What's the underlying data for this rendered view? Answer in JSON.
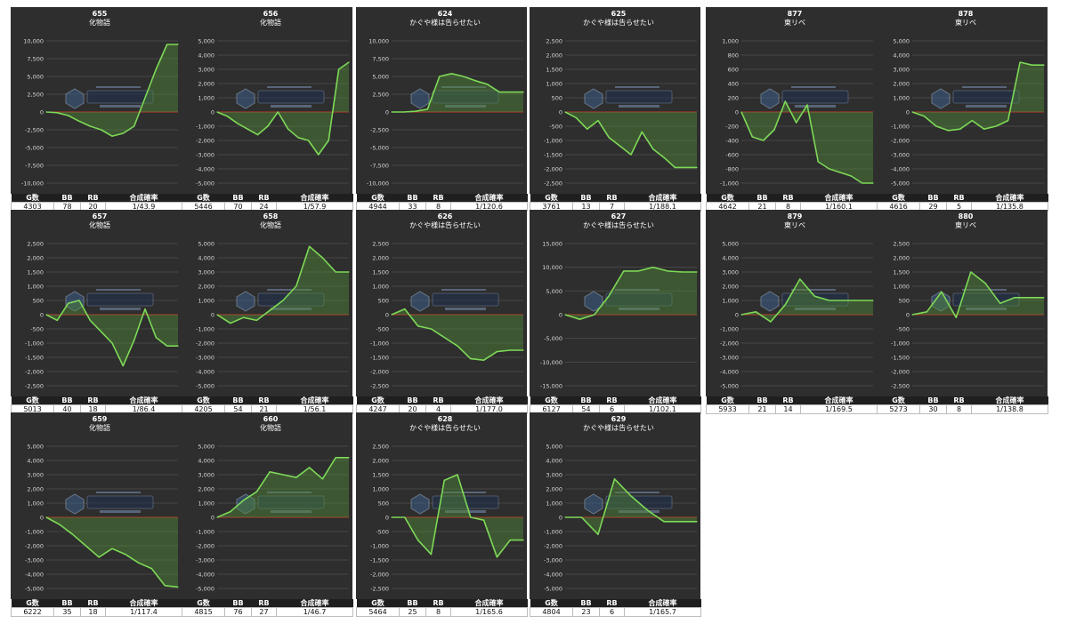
{
  "colors": {
    "panel_bg": "#2e2e2e",
    "header_bg": "#1f1f1f",
    "line": "#7ed957",
    "fill": "#4f8a37",
    "zero_line": "#c0392b",
    "grid": "#474747",
    "text": "#ffffff"
  },
  "stat_headers": [
    "G数",
    "BB",
    "RB",
    "合成確率"
  ],
  "watermark_icon": "anaslo-logo-watermark",
  "chart_data": [
    {
      "type": "area",
      "title": "655",
      "subtitle": "化物語",
      "ylim": [
        -11000,
        11000
      ],
      "yticks": [
        "10,000",
        "7,500",
        "5,000",
        "2,500",
        "0",
        "-2,500",
        "-5,000",
        "-7,500",
        "-10,000"
      ],
      "ytick_values": [
        10000,
        7500,
        5000,
        2500,
        0,
        -2500,
        -5000,
        -7500,
        -10000
      ],
      "values": [
        0,
        -100,
        -500,
        -1300,
        -2000,
        -2500,
        -3400,
        -3000,
        -2000,
        2000,
        6000,
        9500,
        9500
      ],
      "stats": {
        "g": "4303",
        "bb": "78",
        "rb": "20",
        "rate": "1/43.9"
      }
    },
    {
      "type": "area",
      "title": "656",
      "subtitle": "化物語",
      "ylim": [
        -5500,
        5500
      ],
      "yticks": [
        "5,000",
        "4,000",
        "3,000",
        "2,000",
        "1,000",
        "0",
        "-1,000",
        "-2,000",
        "-3,000",
        "-4,000",
        "-5,000"
      ],
      "ytick_values": [
        5000,
        4000,
        3000,
        2000,
        1000,
        0,
        -1000,
        -2000,
        -3000,
        -4000,
        -5000
      ],
      "values": [
        0,
        -300,
        -800,
        -1200,
        -1600,
        -1000,
        0,
        -1200,
        -1800,
        -2000,
        -3000,
        -2000,
        3000,
        3500
      ],
      "stats": {
        "g": "5446",
        "bb": "70",
        "rb": "24",
        "rate": "1/57.9"
      }
    },
    {
      "type": "area",
      "title": "624",
      "subtitle": "かぐや様は告らせたい",
      "ylim": [
        -11000,
        11000
      ],
      "yticks": [
        "10,000",
        "7,500",
        "5,000",
        "2,500",
        "0",
        "-2,500",
        "-5,000",
        "-7,500",
        "-10,000"
      ],
      "ytick_values": [
        10000,
        7500,
        5000,
        2500,
        0,
        -2500,
        -5000,
        -7500,
        -10000
      ],
      "values": [
        0,
        0,
        100,
        400,
        5000,
        5400,
        5000,
        4400,
        3900,
        2800,
        2800,
        2800
      ],
      "stats": {
        "g": "4944",
        "bb": "33",
        "rb": "8",
        "rate": "1/120.6"
      }
    },
    {
      "type": "area",
      "title": "625",
      "subtitle": "かぐや様は告らせたい",
      "ylim": [
        -2750,
        2750
      ],
      "yticks": [
        "2,500",
        "2,000",
        "1,500",
        "1,000",
        "500",
        "0",
        "-500",
        "-1,000",
        "-1,500",
        "-2,000",
        "-2,500"
      ],
      "ytick_values": [
        2500,
        2000,
        1500,
        1000,
        500,
        0,
        -500,
        -1000,
        -1500,
        -2000,
        -2500
      ],
      "values": [
        0,
        -200,
        -600,
        -300,
        -900,
        -1200,
        -1500,
        -700,
        -1300,
        -1600,
        -1950,
        -1950,
        -1950
      ],
      "stats": {
        "g": "3761",
        "bb": "13",
        "rb": "7",
        "rate": "1/188.1"
      }
    },
    {
      "type": "area",
      "title": "877",
      "subtitle": "東リベ",
      "ylim": [
        -1100,
        1100
      ],
      "yticks": [
        "1,000",
        "800",
        "600",
        "400",
        "200",
        "0",
        "-200",
        "-400",
        "-600",
        "-800",
        "-1,000"
      ],
      "ytick_values": [
        1000,
        800,
        600,
        400,
        200,
        0,
        -200,
        -400,
        -600,
        -800,
        -1000
      ],
      "values": [
        0,
        -350,
        -400,
        -250,
        150,
        -150,
        100,
        -700,
        -800,
        -850,
        -900,
        -1000,
        -1000
      ],
      "stats": {
        "g": "4642",
        "bb": "21",
        "rb": "8",
        "rate": "1/160.1"
      }
    },
    {
      "type": "area",
      "title": "878",
      "subtitle": "東リベ",
      "ylim": [
        -5500,
        5500
      ],
      "yticks": [
        "5,000",
        "4,000",
        "3,000",
        "2,000",
        "1,000",
        "0",
        "-1,000",
        "-2,000",
        "-3,000",
        "-4,000",
        "-5,000"
      ],
      "ytick_values": [
        5000,
        4000,
        3000,
        2000,
        1000,
        0,
        -1000,
        -2000,
        -3000,
        -4000,
        -5000
      ],
      "values": [
        0,
        -300,
        -1000,
        -1300,
        -1200,
        -600,
        -1200,
        -1000,
        -600,
        3500,
        3300,
        3300
      ],
      "stats": {
        "g": "4616",
        "bb": "29",
        "rb": "5",
        "rate": "1/135.8"
      }
    },
    {
      "type": "area",
      "title": "657",
      "subtitle": "化物語",
      "ylim": [
        -2750,
        2750
      ],
      "yticks": [
        "2,500",
        "2,000",
        "1,500",
        "1,000",
        "500",
        "0",
        "-500",
        "-1,000",
        "-1,500",
        "-2,000",
        "-2,500"
      ],
      "ytick_values": [
        2500,
        2000,
        1500,
        1000,
        500,
        0,
        -500,
        -1000,
        -1500,
        -2000,
        -2500
      ],
      "values": [
        0,
        -200,
        400,
        500,
        -200,
        -600,
        -1000,
        -1800,
        -900,
        200,
        -800,
        -1100,
        -1100
      ],
      "stats": {
        "g": "5013",
        "bb": "40",
        "rb": "18",
        "rate": "1/86.4"
      }
    },
    {
      "type": "area",
      "title": "658",
      "subtitle": "化物語",
      "ylim": [
        -5500,
        5500
      ],
      "yticks": [
        "5,000",
        "4,000",
        "3,000",
        "2,000",
        "1,000",
        "0",
        "-1,000",
        "-2,000",
        "-3,000",
        "-4,000",
        "-5,000"
      ],
      "ytick_values": [
        5000,
        4000,
        3000,
        2000,
        1000,
        0,
        -1000,
        -2000,
        -3000,
        -4000,
        -5000
      ],
      "values": [
        0,
        -600,
        -200,
        -400,
        300,
        1000,
        2000,
        4800,
        4000,
        3000,
        3000
      ],
      "stats": {
        "g": "4205",
        "bb": "54",
        "rb": "21",
        "rate": "1/56.1"
      }
    },
    {
      "type": "area",
      "title": "626",
      "subtitle": "かぐや様は告らせたい",
      "ylim": [
        -2750,
        2750
      ],
      "yticks": [
        "2,500",
        "2,000",
        "1,500",
        "1,000",
        "500",
        "0",
        "-500",
        "-1,000",
        "-1,500",
        "-2,000",
        "-2,500"
      ],
      "ytick_values": [
        2500,
        2000,
        1500,
        1000,
        500,
        0,
        -500,
        -1000,
        -1500,
        -2000,
        -2500
      ],
      "values": [
        0,
        200,
        -400,
        -500,
        -800,
        -1100,
        -1550,
        -1600,
        -1300,
        -1250,
        -1250
      ],
      "stats": {
        "g": "4247",
        "bb": "20",
        "rb": "4",
        "rate": "1/177.0"
      }
    },
    {
      "type": "area",
      "title": "627",
      "subtitle": "かぐや様は告らせたい",
      "ylim": [
        -16500,
        16500
      ],
      "yticks": [
        "15,000",
        "10,000",
        "5,000",
        "0",
        "-5,000",
        "-10,000",
        "-15,000"
      ],
      "ytick_values": [
        15000,
        10000,
        5000,
        0,
        -5000,
        -10000,
        -15000
      ],
      "values": [
        0,
        -1000,
        0,
        4000,
        9200,
        9200,
        10000,
        9200,
        9000,
        9000
      ],
      "stats": {
        "g": "6127",
        "bb": "54",
        "rb": "6",
        "rate": "1/102.1"
      }
    },
    {
      "type": "area",
      "title": "879",
      "subtitle": "東リベ",
      "ylim": [
        -5500,
        5500
      ],
      "yticks": [
        "5,000",
        "4,000",
        "3,000",
        "2,000",
        "1,000",
        "0",
        "-1,000",
        "-2,000",
        "-3,000",
        "-4,000",
        "-5,000"
      ],
      "ytick_values": [
        5000,
        4000,
        3000,
        2000,
        1000,
        0,
        -1000,
        -2000,
        -3000,
        -4000,
        -5000
      ],
      "values": [
        0,
        200,
        -500,
        700,
        2500,
        1300,
        1000,
        1000,
        1000,
        1000
      ],
      "stats": {
        "g": "5933",
        "bb": "21",
        "rb": "14",
        "rate": "1/169.5"
      }
    },
    {
      "type": "area",
      "title": "880",
      "subtitle": "東リベ",
      "ylim": [
        -2750,
        2750
      ],
      "yticks": [
        "2,500",
        "2,000",
        "1,500",
        "1,000",
        "500",
        "0",
        "-500",
        "-1,000",
        "-1,500",
        "-2,000",
        "-2,500"
      ],
      "ytick_values": [
        2500,
        2000,
        1500,
        1000,
        500,
        0,
        -500,
        -1000,
        -1500,
        -2000,
        -2500
      ],
      "values": [
        0,
        100,
        800,
        -100,
        1500,
        1100,
        400,
        600,
        600,
        600
      ],
      "stats": {
        "g": "5273",
        "bb": "30",
        "rb": "8",
        "rate": "1/138.8"
      }
    },
    {
      "type": "area",
      "title": "659",
      "subtitle": "化物語",
      "ylim": [
        -5500,
        5500
      ],
      "yticks": [
        "5,000",
        "4,000",
        "3,000",
        "2,000",
        "1,000",
        "0",
        "-1,000",
        "-2,000",
        "-3,000",
        "-4,000",
        "-5,000"
      ],
      "ytick_values": [
        5000,
        4000,
        3000,
        2000,
        1000,
        0,
        -1000,
        -2000,
        -3000,
        -4000,
        -5000
      ],
      "values": [
        0,
        -500,
        -1200,
        -2000,
        -2800,
        -2200,
        -2600,
        -3200,
        -3600,
        -4800,
        -4900
      ],
      "stats": {
        "g": "6222",
        "bb": "35",
        "rb": "18",
        "rate": "1/117.4"
      }
    },
    {
      "type": "area",
      "title": "660",
      "subtitle": "化物語",
      "ylim": [
        -5500,
        5500
      ],
      "yticks": [
        "5,000",
        "4,000",
        "3,000",
        "2,000",
        "1,000",
        "0",
        "-1,000",
        "-2,000",
        "-3,000",
        "-4,000",
        "-5,000"
      ],
      "ytick_values": [
        5000,
        4000,
        3000,
        2000,
        1000,
        0,
        -1000,
        -2000,
        -3000,
        -4000,
        -5000
      ],
      "values": [
        0,
        400,
        1200,
        1800,
        3200,
        3000,
        2800,
        3500,
        2700,
        4200,
        4200
      ],
      "stats": {
        "g": "4815",
        "bb": "76",
        "rb": "27",
        "rate": "1/46.7"
      }
    },
    {
      "type": "area",
      "title": "628",
      "subtitle": "かぐや様は告らせたい",
      "ylim": [
        -2750,
        2750
      ],
      "yticks": [
        "2,500",
        "2,000",
        "1,500",
        "1,000",
        "500",
        "0",
        "-500",
        "-1,000",
        "-1,500",
        "-2,000",
        "-2,500"
      ],
      "ytick_values": [
        2500,
        2000,
        1500,
        1000,
        500,
        0,
        -500,
        -1000,
        -1500,
        -2000,
        -2500
      ],
      "values": [
        0,
        0,
        -800,
        -1300,
        1300,
        1500,
        0,
        -100,
        -1400,
        -800,
        -800
      ],
      "stats": {
        "g": "5464",
        "bb": "25",
        "rb": "8",
        "rate": "1/165.6"
      }
    },
    {
      "type": "area",
      "title": "629",
      "subtitle": "かぐや様は告らせたい",
      "ylim": [
        -5500,
        5500
      ],
      "yticks": [
        "5,000",
        "4,000",
        "3,000",
        "2,000",
        "1,000",
        "0",
        "-1,000",
        "-2,000",
        "-3,000",
        "-4,000",
        "-5,000"
      ],
      "ytick_values": [
        5000,
        4000,
        3000,
        2000,
        1000,
        0,
        -1000,
        -2000,
        -3000,
        -4000,
        -5000
      ],
      "values": [
        0,
        0,
        -1200,
        2700,
        1500,
        500,
        -300,
        -300,
        -300
      ],
      "stats": {
        "g": "4804",
        "bb": "23",
        "rb": "6",
        "rate": "1/165.7"
      }
    }
  ]
}
